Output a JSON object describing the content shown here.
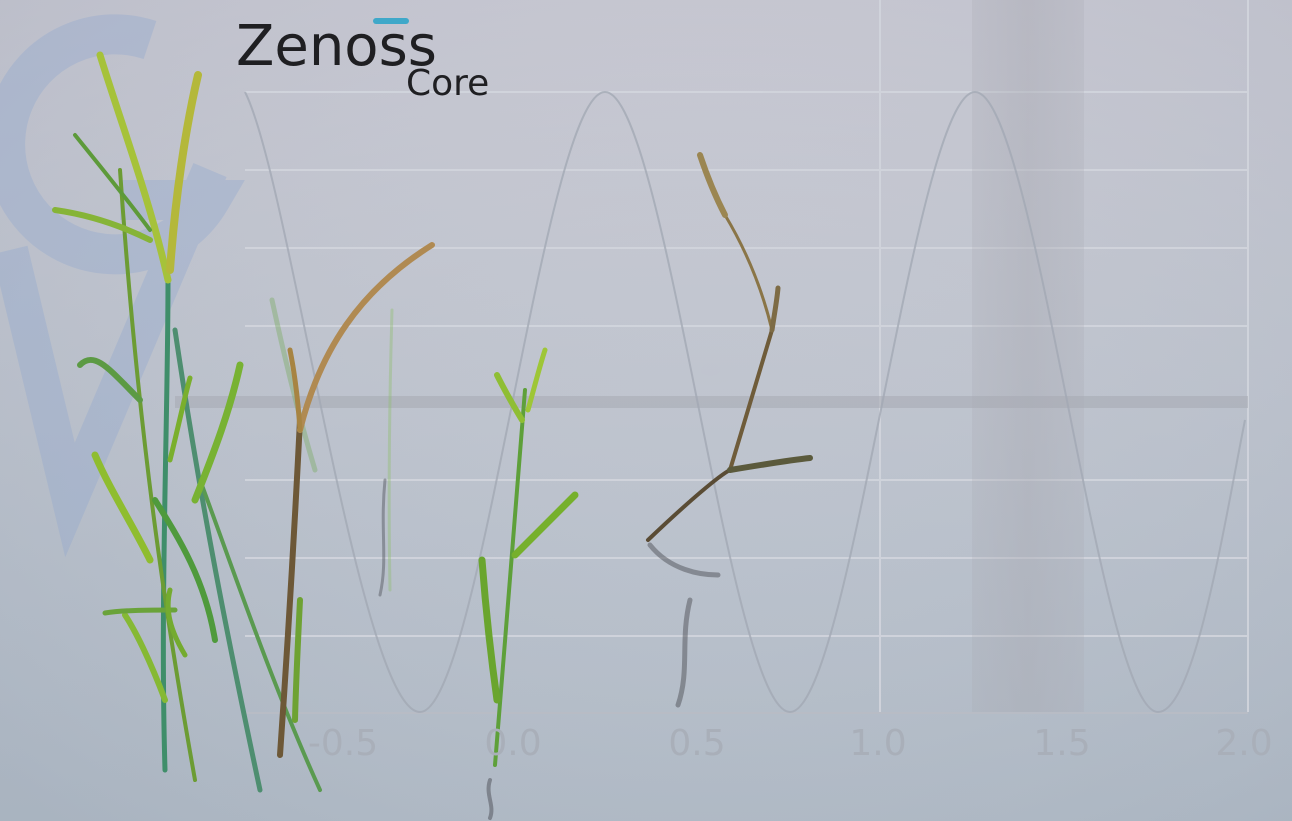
{
  "logo": {
    "word": "Zenoss",
    "sub": "Core"
  },
  "wallpaper": {
    "axis_ticks": [
      "-0.5",
      "0.0",
      "0.5",
      "1.0",
      "1.5",
      "2.0"
    ],
    "colors": {
      "background": "#bec2cc",
      "grid": "#d3d6de",
      "curve": "#a7adb8",
      "watermark": "#9db0cf",
      "grass_green": "#7cae2e",
      "grass_brown": "#8a6a3a"
    }
  }
}
